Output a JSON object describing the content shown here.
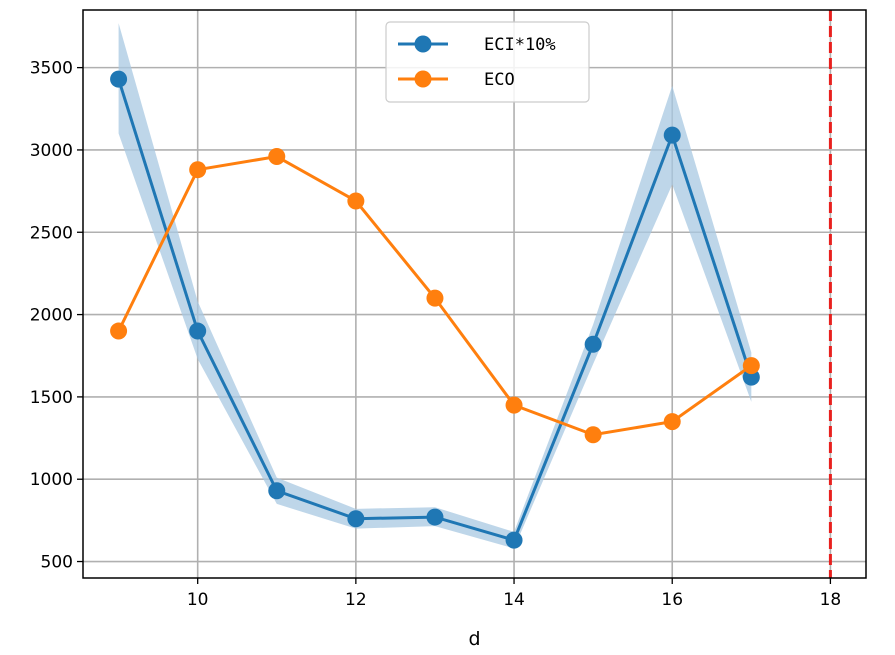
{
  "chart_data": {
    "type": "line",
    "xlabel": "d",
    "ylabel": "",
    "title": "",
    "xlim": [
      8.55,
      18.45
    ],
    "ylim": [
      400,
      3850
    ],
    "xticks": [
      10,
      12,
      14,
      16,
      18
    ],
    "yticks": [
      500,
      1000,
      1500,
      2000,
      2500,
      3000,
      3500
    ],
    "grid": true,
    "legend_position": "top-center",
    "vline": {
      "x": 18,
      "color": "#e8201e",
      "style": "dashed"
    },
    "x": [
      9,
      10,
      11,
      12,
      13,
      14,
      15,
      16,
      17
    ],
    "series": [
      {
        "name": "ECI*10%",
        "color": "#1f77b4",
        "band_color": "#a8c8e2",
        "values": [
          3430,
          1900,
          930,
          760,
          770,
          630,
          1820,
          3090,
          1620
        ],
        "lower": [
          3100,
          1730,
          850,
          700,
          715,
          580,
          1700,
          2790,
          1470
        ],
        "upper": [
          3770,
          2080,
          1010,
          820,
          830,
          680,
          1940,
          3390,
          1770
        ]
      },
      {
        "name": "ECO",
        "color": "#ff7f0e",
        "values": [
          1900,
          2880,
          2960,
          2690,
          2100,
          1450,
          1270,
          1350,
          1690
        ]
      }
    ]
  }
}
